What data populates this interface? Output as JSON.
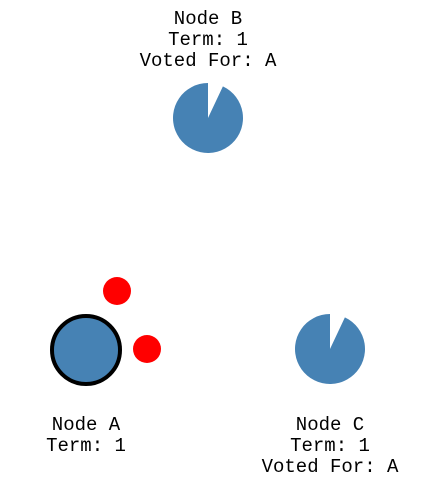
{
  "nodes": [
    {
      "id": "B",
      "name": "Node B",
      "term": "Term: 1",
      "voted_for": "Voted For: A",
      "state": "follower",
      "election_timer_remaining_fraction": 0.93,
      "color": "#4682b4"
    },
    {
      "id": "A",
      "name": "Node A",
      "term": "Term: 1",
      "voted_for": "",
      "state": "leader",
      "election_timer_remaining_fraction": 1.0,
      "color": "#4682b4",
      "outline_color": "#000000"
    },
    {
      "id": "C",
      "name": "Node C",
      "term": "Term: 1",
      "voted_for": "Voted For: A",
      "state": "follower",
      "election_timer_remaining_fraction": 0.93,
      "color": "#4682b4"
    }
  ],
  "messages": [
    {
      "from": "A",
      "to": "B",
      "color": "#ff0000"
    },
    {
      "from": "A",
      "to": "C",
      "color": "#ff0000"
    }
  ]
}
